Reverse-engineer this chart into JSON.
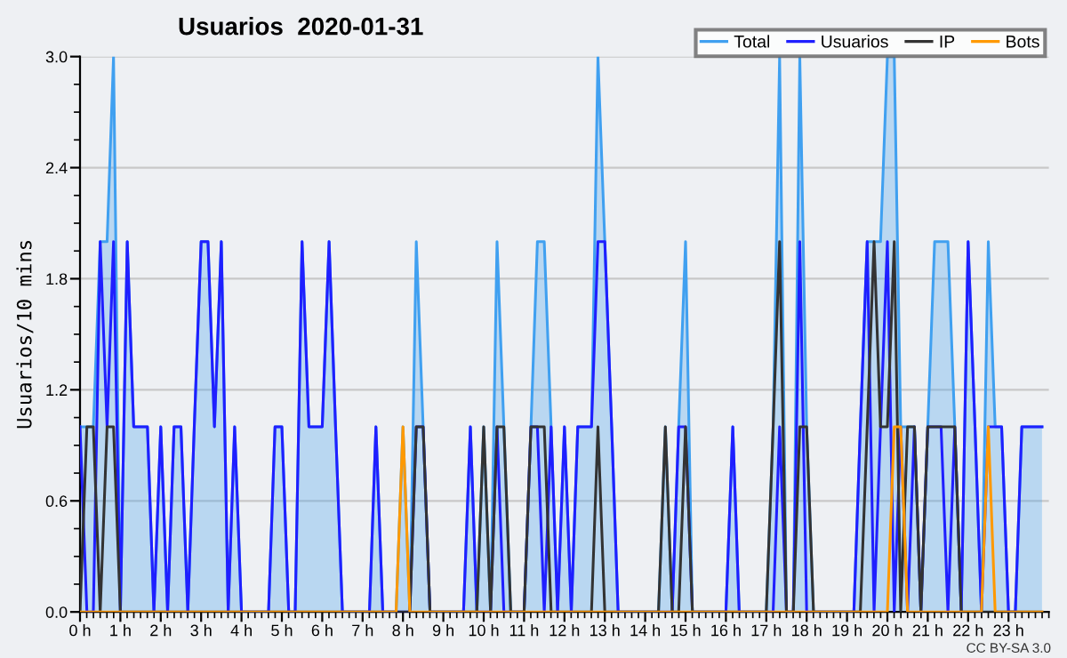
{
  "chart_data": {
    "type": "line",
    "title": "Usuarios  2020-01-31",
    "ylabel": "Usuarios/10 mins",
    "annotations": [
      "CC BY-SA 3.0"
    ],
    "x": [
      0,
      0.17,
      0.33,
      0.5,
      0.67,
      0.83,
      1,
      1.17,
      1.33,
      1.5,
      1.67,
      1.83,
      2,
      2.17,
      2.33,
      2.5,
      2.67,
      2.83,
      3,
      3.17,
      3.33,
      3.5,
      3.67,
      3.83,
      4,
      4.17,
      4.33,
      4.5,
      4.67,
      4.83,
      5,
      5.17,
      5.33,
      5.5,
      5.67,
      5.83,
      6,
      6.17,
      6.33,
      6.5,
      6.67,
      6.83,
      7,
      7.17,
      7.33,
      7.5,
      7.67,
      7.83,
      8,
      8.17,
      8.33,
      8.5,
      8.67,
      8.83,
      9,
      9.17,
      9.33,
      9.5,
      9.67,
      9.83,
      10,
      10.17,
      10.33,
      10.5,
      10.67,
      10.83,
      11,
      11.17,
      11.33,
      11.5,
      11.67,
      11.83,
      12,
      12.17,
      12.33,
      12.5,
      12.67,
      12.83,
      13,
      13.17,
      13.33,
      13.5,
      13.67,
      13.83,
      14,
      14.17,
      14.33,
      14.5,
      14.67,
      14.83,
      15,
      15.17,
      15.33,
      15.5,
      15.67,
      15.83,
      16,
      16.17,
      16.33,
      16.5,
      16.67,
      16.83,
      17,
      17.17,
      17.33,
      17.5,
      17.67,
      17.83,
      18,
      18.17,
      18.33,
      18.5,
      18.67,
      18.83,
      19,
      19.17,
      19.33,
      19.5,
      19.67,
      19.83,
      20,
      20.17,
      20.33,
      20.5,
      20.67,
      20.83,
      21,
      21.17,
      21.33,
      21.5,
      21.67,
      21.83,
      22,
      22.17,
      22.33,
      22.5,
      22.67,
      22.83,
      23,
      23.17,
      23.33,
      23.5,
      23.67,
      23.83
    ],
    "series": [
      {
        "name": "Total",
        "type": "area",
        "color": "#40a0f0",
        "values": [
          1,
          1,
          1,
          2,
          2,
          3,
          0,
          2,
          1,
          1,
          1,
          0,
          1,
          0,
          1,
          1,
          0,
          1,
          2,
          2,
          1,
          2,
          0,
          1,
          0,
          0,
          0,
          0,
          0,
          1,
          1,
          0,
          0,
          2,
          1,
          1,
          1,
          2,
          1,
          0,
          0,
          0,
          0,
          0,
          1,
          0,
          0,
          0,
          1,
          0,
          2,
          1,
          0,
          0,
          0,
          0,
          0,
          0,
          1,
          0,
          1,
          0,
          2,
          1,
          0,
          0,
          0,
          1,
          2,
          2,
          1,
          0,
          1,
          0,
          1,
          1,
          1,
          3,
          2,
          1,
          0,
          0,
          0,
          0,
          0,
          0,
          0,
          1,
          0,
          1,
          2,
          0,
          0,
          0,
          0,
          0,
          0,
          1,
          0,
          0,
          0,
          0,
          0,
          1,
          3,
          0,
          0,
          3,
          1,
          0,
          0,
          0,
          0,
          0,
          0,
          0,
          1,
          2,
          2,
          2,
          3,
          3,
          1,
          1,
          1,
          0,
          1,
          2,
          2,
          2,
          1,
          0,
          2,
          1,
          0,
          2,
          1,
          1,
          0,
          0,
          1,
          1,
          1,
          1
        ]
      },
      {
        "name": "Usuarios",
        "color": "#1f1fff",
        "values": [
          1,
          0,
          0,
          2,
          1,
          2,
          0,
          2,
          1,
          1,
          1,
          0,
          1,
          0,
          1,
          1,
          0,
          1,
          2,
          2,
          1,
          2,
          0,
          1,
          0,
          0,
          0,
          0,
          0,
          1,
          1,
          0,
          0,
          2,
          1,
          1,
          1,
          2,
          1,
          0,
          0,
          0,
          0,
          0,
          1,
          0,
          0,
          0,
          0,
          0,
          1,
          1,
          0,
          0,
          0,
          0,
          0,
          0,
          1,
          0,
          0,
          0,
          1,
          0,
          0,
          0,
          0,
          1,
          1,
          0,
          1,
          0,
          1,
          0,
          1,
          1,
          1,
          2,
          2,
          1,
          0,
          0,
          0,
          0,
          0,
          0,
          0,
          0,
          0,
          1,
          1,
          0,
          0,
          0,
          0,
          0,
          0,
          1,
          0,
          0,
          0,
          0,
          0,
          0,
          1,
          0,
          0,
          2,
          0,
          0,
          0,
          0,
          0,
          0,
          0,
          0,
          1,
          2,
          0,
          1,
          2,
          0,
          1,
          0,
          1,
          0,
          1,
          1,
          1,
          0,
          1,
          0,
          2,
          1,
          0,
          1,
          1,
          1,
          0,
          0,
          1,
          1,
          1,
          1
        ]
      },
      {
        "name": "IP",
        "color": "#333333",
        "values": [
          0,
          1,
          1,
          0,
          1,
          1,
          0,
          0,
          0,
          0,
          0,
          0,
          0,
          0,
          0,
          0,
          0,
          0,
          0,
          0,
          0,
          0,
          0,
          0,
          0,
          0,
          0,
          0,
          0,
          0,
          0,
          0,
          0,
          0,
          0,
          0,
          0,
          0,
          0,
          0,
          0,
          0,
          0,
          0,
          0,
          0,
          0,
          0,
          0,
          0,
          1,
          1,
          0,
          0,
          0,
          0,
          0,
          0,
          0,
          0,
          1,
          0,
          1,
          1,
          0,
          0,
          0,
          1,
          1,
          1,
          0,
          0,
          0,
          0,
          0,
          0,
          0,
          1,
          0,
          0,
          0,
          0,
          0,
          0,
          0,
          0,
          0,
          1,
          0,
          0,
          1,
          0,
          0,
          0,
          0,
          0,
          0,
          0,
          0,
          0,
          0,
          0,
          0,
          1,
          2,
          0,
          0,
          1,
          1,
          0,
          0,
          0,
          0,
          0,
          0,
          0,
          0,
          1,
          2,
          1,
          1,
          2,
          0,
          1,
          1,
          0,
          1,
          1,
          1,
          1,
          1,
          0,
          0,
          0,
          0,
          0,
          0,
          0,
          0,
          0,
          0,
          0,
          0,
          0
        ]
      },
      {
        "name": "Bots",
        "color": "#ff9900",
        "values": [
          0,
          0,
          0,
          0,
          0,
          0,
          0,
          0,
          0,
          0,
          0,
          0,
          0,
          0,
          0,
          0,
          0,
          0,
          0,
          0,
          0,
          0,
          0,
          0,
          0,
          0,
          0,
          0,
          0,
          0,
          0,
          0,
          0,
          0,
          0,
          0,
          0,
          0,
          0,
          0,
          0,
          0,
          0,
          0,
          0,
          0,
          0,
          0,
          1,
          0,
          0,
          0,
          0,
          0,
          0,
          0,
          0,
          0,
          0,
          0,
          0,
          0,
          0,
          0,
          0,
          0,
          0,
          0,
          0,
          0,
          0,
          0,
          0,
          0,
          0,
          0,
          0,
          0,
          0,
          0,
          0,
          0,
          0,
          0,
          0,
          0,
          0,
          0,
          0,
          0,
          0,
          0,
          0,
          0,
          0,
          0,
          0,
          0,
          0,
          0,
          0,
          0,
          0,
          0,
          0,
          0,
          0,
          0,
          0,
          0,
          0,
          0,
          0,
          0,
          0,
          0,
          0,
          0,
          0,
          0,
          0,
          1,
          1,
          0,
          0,
          0,
          0,
          0,
          0,
          0,
          0,
          0,
          0,
          0,
          0,
          1,
          0,
          0,
          0,
          0,
          0,
          0,
          0,
          0
        ]
      }
    ],
    "xlim": [
      0,
      24
    ],
    "xticks": [
      {
        "value": 0,
        "label": "0 h"
      },
      {
        "value": 1,
        "label": "1 h"
      },
      {
        "value": 2,
        "label": "2 h"
      },
      {
        "value": 3,
        "label": "3 h"
      },
      {
        "value": 4,
        "label": "4 h"
      },
      {
        "value": 5,
        "label": "5 h"
      },
      {
        "value": 6,
        "label": "6 h"
      },
      {
        "value": 7,
        "label": "7 h"
      },
      {
        "value": 8,
        "label": "8 h"
      },
      {
        "value": 9,
        "label": "9 h"
      },
      {
        "value": 10,
        "label": "10 h"
      },
      {
        "value": 11,
        "label": "11 h"
      },
      {
        "value": 12,
        "label": "12 h"
      },
      {
        "value": 13,
        "label": "13 h"
      },
      {
        "value": 14,
        "label": "14 h"
      },
      {
        "value": 15,
        "label": "15 h"
      },
      {
        "value": 16,
        "label": "16 h"
      },
      {
        "value": 17,
        "label": "17 h"
      },
      {
        "value": 18,
        "label": "18 h"
      },
      {
        "value": 19,
        "label": "19 h"
      },
      {
        "value": 20,
        "label": "20 h"
      },
      {
        "value": 21,
        "label": "21 h"
      },
      {
        "value": 22,
        "label": "22 h"
      },
      {
        "value": 23,
        "label": "23 h"
      }
    ],
    "ylim": [
      0,
      3
    ],
    "yticks": [
      {
        "value": 0,
        "label": "0.0"
      },
      {
        "value": 0.6,
        "label": "0.6"
      },
      {
        "value": 1.2,
        "label": "1.2"
      },
      {
        "value": 1.8,
        "label": "1.8"
      },
      {
        "value": 2.4,
        "label": "2.4"
      },
      {
        "value": 3,
        "label": "3.0"
      }
    ],
    "grid": "y",
    "legend": "top right"
  }
}
